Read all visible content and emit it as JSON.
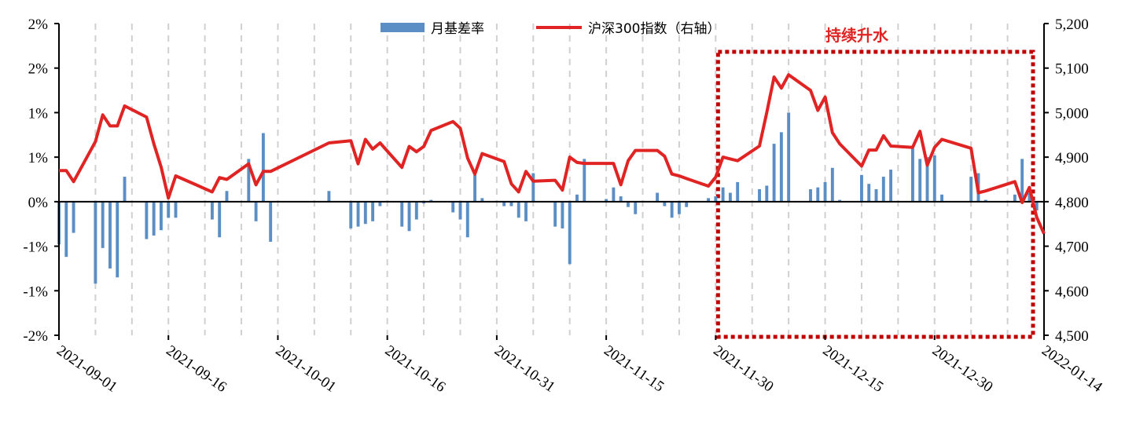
{
  "colors": {
    "bar": "#5b8ec4",
    "line": "#e02424",
    "highlight": "#c00000",
    "grid": "#d0d0d0",
    "axis": "#000000"
  },
  "chart_data": {
    "type": "bar+line",
    "title": "",
    "legend": [
      "月基差率",
      "沪深300指数（右轴）"
    ],
    "legend_position": "top",
    "annotation": "持续升水",
    "highlight_range": [
      "2021-11-30",
      "2022-01-14"
    ],
    "y_left": {
      "ticks": [
        "-2%",
        "-1%",
        "-1%",
        "0%",
        "1%",
        "1%",
        "2%",
        "2%"
      ],
      "range": [
        -1.5,
        2.0
      ]
    },
    "y_right": {
      "ticks": [
        "4,500",
        "4,600",
        "4,700",
        "4,800",
        "4,900",
        "5,000",
        "5,100",
        "5,200"
      ],
      "range": [
        4500,
        5200
      ]
    },
    "x_ticks": [
      "2021-09-01",
      "2021-09-16",
      "2021-10-01",
      "2021-10-16",
      "2021-10-31",
      "2021-11-15",
      "2021-11-30",
      "2021-12-15",
      "2021-12-30",
      "2022-01-14"
    ],
    "grid": "vertical dashed",
    "series": [
      {
        "name": "月基差率",
        "type": "bar",
        "axis": "left",
        "points": [
          [
            "2021-09-01",
            -0.48
          ],
          [
            "2021-09-02",
            -0.62
          ],
          [
            "2021-09-03",
            -0.35
          ],
          [
            "2021-09-06",
            -0.92
          ],
          [
            "2021-09-07",
            -0.52
          ],
          [
            "2021-09-08",
            -0.75
          ],
          [
            "2021-09-09",
            -0.85
          ],
          [
            "2021-09-10",
            0.28
          ],
          [
            "2021-09-13",
            -0.42
          ],
          [
            "2021-09-14",
            -0.38
          ],
          [
            "2021-09-15",
            -0.32
          ],
          [
            "2021-09-16",
            -0.18
          ],
          [
            "2021-09-17",
            -0.18
          ],
          [
            "2021-09-22",
            -0.2
          ],
          [
            "2021-09-23",
            -0.4
          ],
          [
            "2021-09-24",
            0.12
          ],
          [
            "2021-09-27",
            0.48
          ],
          [
            "2021-09-28",
            -0.22
          ],
          [
            "2021-09-29",
            0.77
          ],
          [
            "2021-09-30",
            -0.45
          ],
          [
            "2021-10-08",
            0.12
          ],
          [
            "2021-10-11",
            -0.3
          ],
          [
            "2021-10-12",
            -0.28
          ],
          [
            "2021-10-13",
            -0.25
          ],
          [
            "2021-10-14",
            -0.22
          ],
          [
            "2021-10-15",
            -0.05
          ],
          [
            "2021-10-18",
            -0.28
          ],
          [
            "2021-10-19",
            -0.33
          ],
          [
            "2021-10-20",
            -0.2
          ],
          [
            "2021-10-21",
            -0.02
          ],
          [
            "2021-10-22",
            0.02
          ],
          [
            "2021-10-25",
            -0.12
          ],
          [
            "2021-10-26",
            -0.2
          ],
          [
            "2021-10-27",
            -0.4
          ],
          [
            "2021-10-28",
            0.3
          ],
          [
            "2021-10-29",
            0.04
          ],
          [
            "2021-11-01",
            -0.05
          ],
          [
            "2021-11-02",
            -0.05
          ],
          [
            "2021-11-03",
            -0.18
          ],
          [
            "2021-11-04",
            -0.22
          ],
          [
            "2021-11-05",
            0.32
          ],
          [
            "2021-11-08",
            -0.28
          ],
          [
            "2021-11-09",
            -0.3
          ],
          [
            "2021-11-10",
            -0.7
          ],
          [
            "2021-11-11",
            0.08
          ],
          [
            "2021-11-12",
            0.48
          ],
          [
            "2021-11-15",
            0.03
          ],
          [
            "2021-11-16",
            0.16
          ],
          [
            "2021-11-17",
            0.06
          ],
          [
            "2021-11-18",
            -0.06
          ],
          [
            "2021-11-19",
            -0.14
          ],
          [
            "2021-11-22",
            0.1
          ],
          [
            "2021-11-23",
            -0.05
          ],
          [
            "2021-11-24",
            -0.18
          ],
          [
            "2021-11-25",
            -0.14
          ],
          [
            "2021-11-26",
            -0.06
          ],
          [
            "2021-11-29",
            0.04
          ],
          [
            "2021-11-30",
            0.06
          ],
          [
            "2021-12-01",
            0.16
          ],
          [
            "2021-12-02",
            0.1
          ],
          [
            "2021-12-03",
            0.22
          ],
          [
            "2021-12-06",
            0.14
          ],
          [
            "2021-12-07",
            0.18
          ],
          [
            "2021-12-08",
            0.65
          ],
          [
            "2021-12-09",
            0.78
          ],
          [
            "2021-12-10",
            1.0
          ],
          [
            "2021-12-13",
            0.14
          ],
          [
            "2021-12-14",
            0.16
          ],
          [
            "2021-12-15",
            0.22
          ],
          [
            "2021-12-16",
            0.38
          ],
          [
            "2021-12-17",
            0.02
          ],
          [
            "2021-12-20",
            0.3
          ],
          [
            "2021-12-21",
            0.2
          ],
          [
            "2021-12-22",
            0.14
          ],
          [
            "2021-12-23",
            0.28
          ],
          [
            "2021-12-24",
            0.36
          ],
          [
            "2021-12-27",
            0.6
          ],
          [
            "2021-12-28",
            0.48
          ],
          [
            "2021-12-29",
            0.5
          ],
          [
            "2021-12-30",
            0.52
          ],
          [
            "2021-12-31",
            0.08
          ],
          [
            "2022-01-04",
            0.28
          ],
          [
            "2022-01-05",
            0.32
          ],
          [
            "2022-01-06",
            0.02
          ],
          [
            "2022-01-10",
            0.08
          ],
          [
            "2022-01-11",
            0.48
          ],
          [
            "2022-01-12",
            0.1
          ],
          [
            "2022-01-13",
            -0.1
          ]
        ]
      },
      {
        "name": "沪深300指数（右轴）",
        "type": "line",
        "axis": "right",
        "points": [
          [
            "2021-09-01",
            4870
          ],
          [
            "2021-09-02",
            4870
          ],
          [
            "2021-09-03",
            4845
          ],
          [
            "2021-09-06",
            4935
          ],
          [
            "2021-09-07",
            4995
          ],
          [
            "2021-09-08",
            4970
          ],
          [
            "2021-09-09",
            4970
          ],
          [
            "2021-09-10",
            5015
          ],
          [
            "2021-09-13",
            4990
          ],
          [
            "2021-09-14",
            4930
          ],
          [
            "2021-09-15",
            4878
          ],
          [
            "2021-09-16",
            4808
          ],
          [
            "2021-09-17",
            4858
          ],
          [
            "2021-09-22",
            4822
          ],
          [
            "2021-09-23",
            4854
          ],
          [
            "2021-09-24",
            4850
          ],
          [
            "2021-09-27",
            4885
          ],
          [
            "2021-09-28",
            4838
          ],
          [
            "2021-09-29",
            4868
          ],
          [
            "2021-09-30",
            4868
          ],
          [
            "2021-10-08",
            4932
          ],
          [
            "2021-10-11",
            4937
          ],
          [
            "2021-10-12",
            4885
          ],
          [
            "2021-10-13",
            4940
          ],
          [
            "2021-10-14",
            4918
          ],
          [
            "2021-10-15",
            4932
          ],
          [
            "2021-10-18",
            4877
          ],
          [
            "2021-10-19",
            4924
          ],
          [
            "2021-10-20",
            4912
          ],
          [
            "2021-10-21",
            4924
          ],
          [
            "2021-10-22",
            4960
          ],
          [
            "2021-10-25",
            4980
          ],
          [
            "2021-10-26",
            4965
          ],
          [
            "2021-10-27",
            4898
          ],
          [
            "2021-10-28",
            4862
          ],
          [
            "2021-10-29",
            4908
          ],
          [
            "2021-11-01",
            4890
          ],
          [
            "2021-11-02",
            4840
          ],
          [
            "2021-11-03",
            4822
          ],
          [
            "2021-11-04",
            4868
          ],
          [
            "2021-11-05",
            4846
          ],
          [
            "2021-11-08",
            4848
          ],
          [
            "2021-11-09",
            4826
          ],
          [
            "2021-11-10",
            4900
          ],
          [
            "2021-11-11",
            4888
          ],
          [
            "2021-11-12",
            4886
          ],
          [
            "2021-11-15",
            4886
          ],
          [
            "2021-11-16",
            4886
          ],
          [
            "2021-11-17",
            4838
          ],
          [
            "2021-11-18",
            4892
          ],
          [
            "2021-11-19",
            4915
          ],
          [
            "2021-11-22",
            4915
          ],
          [
            "2021-11-23",
            4902
          ],
          [
            "2021-11-24",
            4862
          ],
          [
            "2021-11-25",
            4858
          ],
          [
            "2021-11-26",
            4852
          ],
          [
            "2021-11-29",
            4835
          ],
          [
            "2021-11-30",
            4855
          ],
          [
            "2021-12-01",
            4900
          ],
          [
            "2021-12-02",
            4896
          ],
          [
            "2021-12-03",
            4892
          ],
          [
            "2021-12-06",
            4925
          ],
          [
            "2021-12-07",
            5000
          ],
          [
            "2021-12-08",
            5080
          ],
          [
            "2021-12-09",
            5055
          ],
          [
            "2021-12-10",
            5085
          ],
          [
            "2021-12-13",
            5050
          ],
          [
            "2021-12-14",
            5005
          ],
          [
            "2021-12-15",
            5035
          ],
          [
            "2021-12-16",
            4955
          ],
          [
            "2021-12-17",
            4930
          ],
          [
            "2021-12-20",
            4880
          ],
          [
            "2021-12-21",
            4916
          ],
          [
            "2021-12-22",
            4916
          ],
          [
            "2021-12-23",
            4948
          ],
          [
            "2021-12-24",
            4925
          ],
          [
            "2021-12-27",
            4922
          ],
          [
            "2021-12-28",
            4958
          ],
          [
            "2021-12-29",
            4882
          ],
          [
            "2021-12-30",
            4922
          ],
          [
            "2021-12-31",
            4940
          ],
          [
            "2022-01-04",
            4920
          ],
          [
            "2022-01-05",
            4820
          ],
          [
            "2022-01-06",
            4824
          ],
          [
            "2022-01-10",
            4845
          ],
          [
            "2022-01-11",
            4798
          ],
          [
            "2022-01-12",
            4832
          ],
          [
            "2022-01-13",
            4765
          ],
          [
            "2022-01-14",
            4728
          ]
        ]
      }
    ]
  }
}
